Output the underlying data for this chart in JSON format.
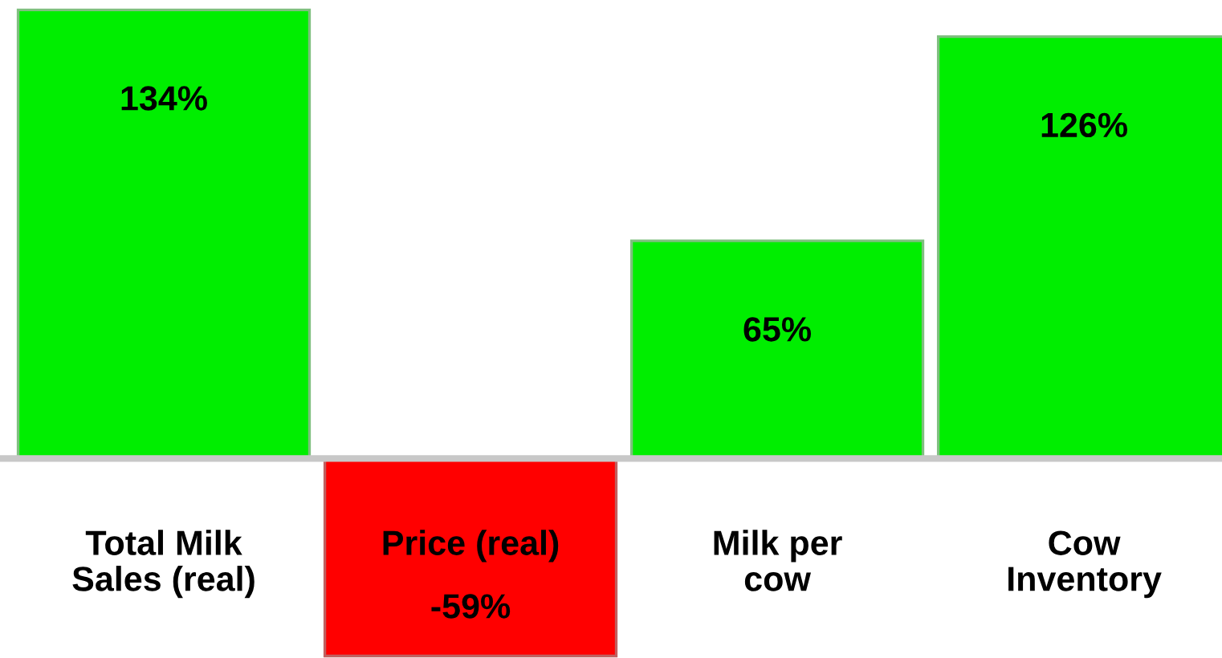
{
  "chart_data": {
    "type": "bar",
    "categories": [
      "Total Milk\nSales (real)",
      "Price (real)",
      "Milk per\ncow",
      "Cow\nInventory"
    ],
    "values": [
      134,
      -59,
      65,
      126
    ],
    "value_labels": [
      "134%",
      "-59%",
      "65%",
      "126%"
    ],
    "colors": [
      "#00ee00",
      "#ff0000",
      "#00ee00",
      "#00ee00"
    ]
  }
}
